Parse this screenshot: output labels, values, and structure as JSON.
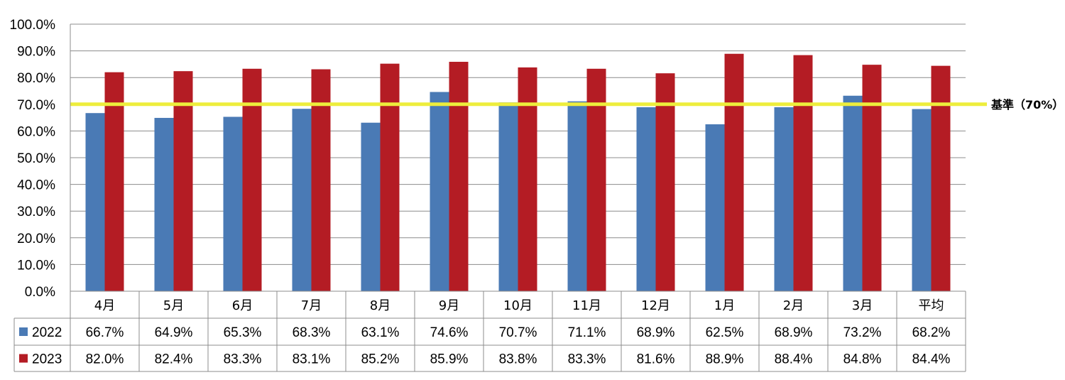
{
  "chart_data": {
    "type": "bar",
    "categories": [
      "4月",
      "5月",
      "6月",
      "7月",
      "8月",
      "9月",
      "10月",
      "11月",
      "12月",
      "1月",
      "2月",
      "3月",
      "平均"
    ],
    "series": [
      {
        "name": "2022",
        "color": "#4a7ab5",
        "values": [
          66.7,
          64.9,
          65.3,
          68.3,
          63.1,
          74.6,
          70.7,
          71.1,
          68.9,
          62.5,
          68.9,
          73.2,
          68.2
        ],
        "labels": [
          "66.7%",
          "64.9%",
          "65.3%",
          "68.3%",
          "63.1%",
          "74.6%",
          "70.7%",
          "71.1%",
          "68.9%",
          "62.5%",
          "68.9%",
          "73.2%",
          "68.2%"
        ]
      },
      {
        "name": "2023",
        "color": "#b41c24",
        "values": [
          82.0,
          82.4,
          83.3,
          83.1,
          85.2,
          85.9,
          83.8,
          83.3,
          81.6,
          88.9,
          88.4,
          84.8,
          84.4
        ],
        "labels": [
          "82.0%",
          "82.4%",
          "83.3%",
          "83.1%",
          "85.2%",
          "85.9%",
          "83.8%",
          "83.3%",
          "81.6%",
          "88.9%",
          "88.4%",
          "84.8%",
          "84.4%"
        ]
      }
    ],
    "ylim": [
      0,
      100
    ],
    "yticks": [
      0,
      10,
      20,
      30,
      40,
      50,
      60,
      70,
      80,
      90,
      100
    ],
    "ytick_labels": [
      "0.0%",
      "10.0%",
      "20.0%",
      "30.0%",
      "40.0%",
      "50.0%",
      "60.0%",
      "70.0%",
      "80.0%",
      "90.0%",
      "100.0%"
    ],
    "grid": true,
    "reference_line": {
      "value": 70,
      "label": "基準（70%）",
      "color": "#eded3c"
    },
    "legend": "data-table-below"
  }
}
